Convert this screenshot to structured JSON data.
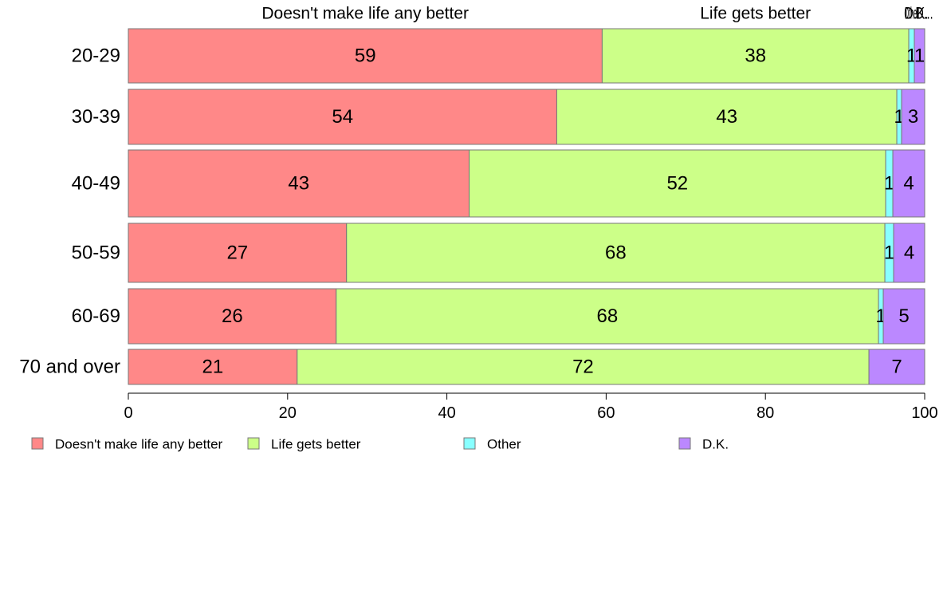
{
  "chart_data": {
    "type": "bar",
    "orientation": "horizontal",
    "stacked": true,
    "categories": [
      "20-29",
      "30-39",
      "40-49",
      "50-59",
      "60-69",
      "70 and over"
    ],
    "series": [
      {
        "name": "Doesn't make life any better",
        "color": "#ff8888",
        "values": [
          59.5,
          53.8,
          42.8,
          27.4,
          26.1,
          21.2
        ]
      },
      {
        "name": "Life gets better",
        "color": "#ccff88",
        "values": [
          38.5,
          42.7,
          52.3,
          67.6,
          68.1,
          71.8
        ]
      },
      {
        "name": "Other",
        "color": "#88ffff",
        "values": [
          0.7,
          0.6,
          0.9,
          1.1,
          0.6,
          0.0
        ]
      },
      {
        "name": "D.K.",
        "color": "#bb88ff",
        "values": [
          1.3,
          2.9,
          4.0,
          3.9,
          5.2,
          7.0
        ]
      }
    ],
    "data_labels": [
      [
        "59",
        "38",
        "1",
        "1"
      ],
      [
        "54",
        "43",
        "1",
        "3"
      ],
      [
        "43",
        "52",
        "1",
        "4"
      ],
      [
        "27",
        "68",
        "1",
        "4"
      ],
      [
        "26",
        "68",
        "1",
        "5"
      ],
      [
        "21",
        "72",
        "",
        "7"
      ]
    ],
    "top_labels": [
      "Doesn't make life any better",
      "Life gets better",
      "Other",
      "D.K."
    ],
    "top_label_overlap_text": "D...",
    "xlim": [
      0,
      100
    ],
    "xticks": [
      "0",
      "20",
      "40",
      "60",
      "80",
      "100"
    ],
    "legend_placement": "bottom",
    "grid": false
  }
}
